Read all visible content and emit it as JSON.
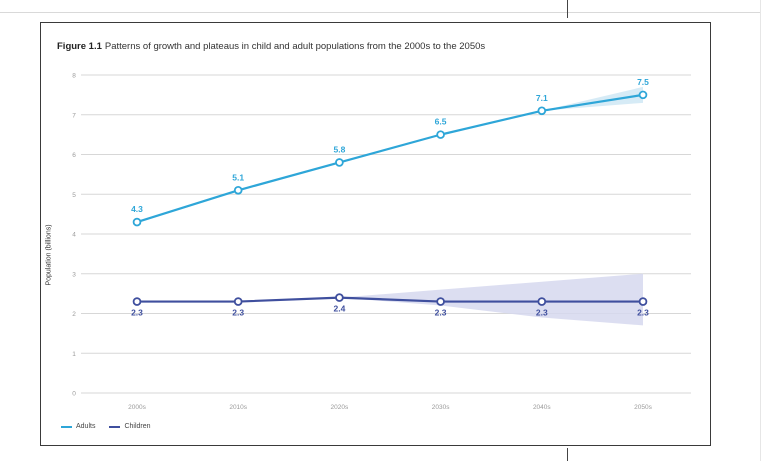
{
  "figure": {
    "number": "Figure 1.1",
    "caption": "Patterns of growth and plateaus in child and adult populations from the 2000s to the 2050s"
  },
  "colors": {
    "adults": "#2ea6d8",
    "children": "#3f4f9e",
    "adults_band": "#cfe8f5",
    "children_band": "#d6d8ee",
    "grid": "#d7d7d7",
    "tick_text": "#9a9a9a"
  },
  "chart_data": {
    "type": "line",
    "title": "Patterns of growth and plateaus in child and adult populations from the 2000s to the 2050s",
    "xlabel": "",
    "ylabel": "Population (billions)",
    "categories": [
      "2000s",
      "2010s",
      "2020s",
      "2030s",
      "2040s",
      "2050s"
    ],
    "yticks": [
      0,
      1,
      2,
      3,
      4,
      5,
      6,
      7,
      8
    ],
    "ylim": [
      0,
      8
    ],
    "grid": true,
    "legend_position": "bottom-left",
    "series": [
      {
        "name": "Adults",
        "values": [
          4.3,
          5.1,
          5.8,
          6.5,
          7.1,
          7.5
        ],
        "labels": [
          "4.3",
          "5.1",
          "5.8",
          "6.5",
          "7.1",
          "7.5"
        ],
        "uncertainty": {
          "from_index": 4,
          "lower": [
            7.1,
            7.3
          ],
          "upper": [
            7.1,
            7.7
          ]
        }
      },
      {
        "name": "Children",
        "values": [
          2.3,
          2.3,
          2.4,
          2.3,
          2.3,
          2.3
        ],
        "labels": [
          "2.3",
          "2.3",
          "2.4",
          "2.3",
          "2.3",
          "2.3"
        ],
        "uncertainty": {
          "from_index": 2,
          "lower": [
            2.4,
            2.2,
            1.9,
            1.7
          ],
          "upper": [
            2.4,
            2.6,
            2.8,
            3.0
          ]
        }
      }
    ]
  }
}
